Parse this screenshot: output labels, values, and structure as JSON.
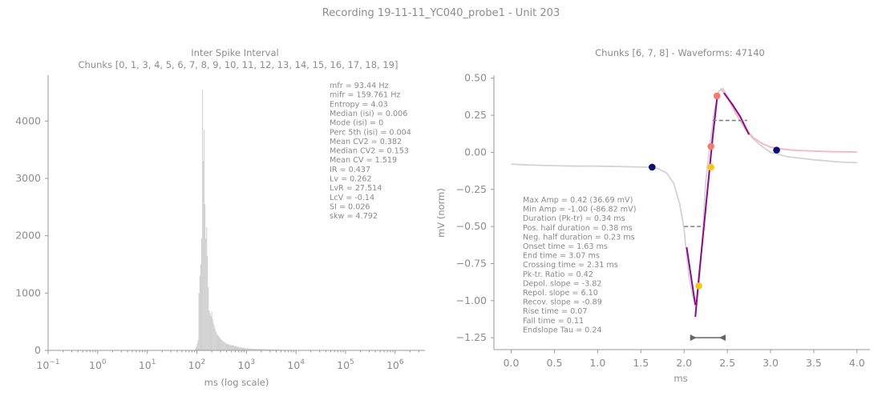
{
  "figure": {
    "title": "Recording 19-11-11_YC040_probe1 - Unit 203"
  },
  "chart_data": [
    {
      "type": "bar",
      "title": "Inter Spike Interval",
      "subtitle": "Chunks [0, 1, 3, 4, 5, 6, 7, 8, 9, 10, 11, 12, 13, 14, 15, 16, 17, 18, 19]",
      "xlabel": "ms (log scale)",
      "ylabel": "",
      "xscale": "log",
      "xlim": [
        0.1,
        4000000
      ],
      "ylim": [
        0,
        4800
      ],
      "xticks": [
        {
          "value": 0.1,
          "base": "10",
          "exp": "−1"
        },
        {
          "value": 1,
          "base": "10",
          "exp": "0"
        },
        {
          "value": 10,
          "base": "10",
          "exp": "1"
        },
        {
          "value": 100,
          "base": "10",
          "exp": "2"
        },
        {
          "value": 1000,
          "base": "10",
          "exp": "3"
        },
        {
          "value": 10000,
          "base": "10",
          "exp": "4"
        },
        {
          "value": 100000,
          "base": "10",
          "exp": "5"
        },
        {
          "value": 1000000,
          "base": "10",
          "exp": "6"
        }
      ],
      "yticks": [
        {
          "value": 0,
          "label": "0"
        },
        {
          "value": 1000,
          "label": "1000"
        },
        {
          "value": 2000,
          "label": "2000"
        },
        {
          "value": 3000,
          "label": "3000"
        },
        {
          "value": 4000,
          "label": "4000"
        }
      ],
      "bar_color": "#cfcfcf",
      "hist_x_ms": [
        85,
        90,
        95,
        100,
        104,
        108,
        113,
        118,
        123,
        128,
        133,
        138,
        143,
        149,
        155,
        161,
        167,
        174,
        181,
        188,
        196,
        204,
        212,
        220,
        229,
        238,
        248,
        258,
        268,
        279,
        290,
        302,
        314,
        326,
        339,
        352,
        366,
        381,
        396,
        412,
        428,
        445,
        463,
        481,
        500,
        560,
        630,
        700,
        800,
        900,
        1000,
        1150,
        1300,
        1500,
        1700,
        2000,
        2300,
        2600,
        3000,
        3500,
        4000,
        4600,
        5300,
        6000,
        7000,
        8000,
        9000,
        10000,
        12000,
        14000,
        16000,
        20000
      ],
      "hist_counts": [
        5,
        20,
        60,
        120,
        180,
        1000,
        1300,
        1500,
        1950,
        4550,
        3300,
        3850,
        2550,
        1950,
        2150,
        1650,
        1100,
        700,
        650,
        600,
        680,
        550,
        480,
        430,
        380,
        330,
        290,
        270,
        250,
        230,
        210,
        195,
        180,
        165,
        155,
        145,
        135,
        125,
        115,
        110,
        105,
        100,
        95,
        92,
        90,
        75,
        62,
        52,
        44,
        38,
        34,
        30,
        28,
        26,
        24,
        22,
        20,
        18,
        16,
        14,
        12,
        11,
        10,
        9,
        8,
        7,
        6,
        5,
        4,
        3,
        2,
        1
      ],
      "stats": [
        "mfr = 93.44 Hz",
        "mifr = 159.761 Hz",
        "Entropy = 4.03",
        "Median (isi) = 0.006",
        "Mode (isi) = 0",
        "Perc 5th (isi) = 0.004",
        "Mean CV2 = 0.382",
        "Median CV2 = 0.153",
        "Mean CV = 1.519",
        "IR = 0.437",
        "Lv = 0.262",
        "LvR = 27.514",
        "LcV = -0.14",
        "SI = 0.026",
        "skw = 4.792"
      ]
    },
    {
      "type": "line",
      "title": "Chunks [6, 7, 8] - Waveforms: 47140",
      "xlabel": "ms",
      "ylabel": "mV (norm)",
      "xlim": [
        -0.2,
        4.15
      ],
      "ylim": [
        -1.33,
        0.52
      ],
      "xticks": [
        {
          "value": 0.0,
          "label": "0.0"
        },
        {
          "value": 0.5,
          "label": "0.5"
        },
        {
          "value": 1.0,
          "label": "1.0"
        },
        {
          "value": 1.5,
          "label": "1.5"
        },
        {
          "value": 2.0,
          "label": "2.0"
        },
        {
          "value": 2.5,
          "label": "2.5"
        },
        {
          "value": 3.0,
          "label": "3.0"
        },
        {
          "value": 3.5,
          "label": "3.5"
        },
        {
          "value": 4.0,
          "label": "4.0"
        }
      ],
      "yticks": [
        {
          "value": 0.5,
          "label": "0.50"
        },
        {
          "value": 0.25,
          "label": "0.25"
        },
        {
          "value": 0.0,
          "label": "0.00"
        },
        {
          "value": -0.25,
          "label": "−0.25"
        },
        {
          "value": -0.5,
          "label": "−0.50"
        },
        {
          "value": -0.75,
          "label": "−0.75"
        },
        {
          "value": -1.0,
          "label": "−1.00"
        },
        {
          "value": -1.25,
          "label": "−1.25"
        }
      ],
      "series": [
        {
          "color": "#d3d3d3",
          "x": [
            0.0,
            0.2,
            0.5,
            0.8,
            1.0,
            1.2,
            1.4,
            1.6,
            1.7,
            1.8,
            1.88,
            1.95,
            2.0,
            2.03,
            2.06,
            2.1,
            2.13,
            2.17,
            2.21,
            2.25,
            2.3,
            2.35,
            2.4,
            2.45,
            2.5,
            2.6,
            2.7,
            2.8,
            2.9,
            3.0,
            3.2,
            3.5,
            3.8,
            4.0
          ],
          "y": [
            -0.08,
            -0.085,
            -0.09,
            -0.093,
            -0.093,
            -0.095,
            -0.098,
            -0.1,
            -0.11,
            -0.14,
            -0.21,
            -0.35,
            -0.52,
            -0.7,
            -0.85,
            -0.97,
            -1.02,
            -0.9,
            -0.6,
            -0.2,
            0.05,
            0.28,
            0.41,
            0.43,
            0.38,
            0.26,
            0.16,
            0.09,
            0.04,
            0.0,
            -0.03,
            -0.05,
            -0.065,
            -0.07
          ]
        },
        {
          "color": "#f4b6c2",
          "x": [
            2.42,
            2.5,
            2.6,
            2.7,
            2.8,
            2.9,
            3.0,
            3.1,
            3.25,
            3.5,
            3.75,
            4.0
          ],
          "y": [
            0.43,
            0.37,
            0.26,
            0.17,
            0.1,
            0.06,
            0.035,
            0.025,
            0.015,
            0.008,
            0.004,
            0.002
          ]
        },
        {
          "color": "#8b0a8b",
          "x": [
            2.03,
            2.13
          ],
          "y": [
            -0.64,
            -1.03
          ]
        },
        {
          "color": "#8b0a8b",
          "x": [
            2.13,
            2.17,
            2.25,
            2.33,
            2.38
          ],
          "y": [
            -1.11,
            -0.85,
            -0.38,
            0.1,
            0.36
          ]
        },
        {
          "color": "#8b0a8b",
          "x": [
            2.46,
            2.55,
            2.65,
            2.75
          ],
          "y": [
            0.4,
            0.33,
            0.24,
            0.12
          ]
        }
      ],
      "half_width_lines": [
        {
          "x1": 2.0,
          "x2": 2.23,
          "y": -0.5
        },
        {
          "x1": 2.33,
          "x2": 2.73,
          "y": 0.215
        }
      ],
      "points": [
        {
          "x": 1.63,
          "y": -0.1,
          "color": "#0b0f7a"
        },
        {
          "x": 3.07,
          "y": 0.015,
          "color": "#0b0f7a"
        },
        {
          "x": 2.31,
          "y": -0.1,
          "color": "#f5c518"
        },
        {
          "x": 2.17,
          "y": -0.9,
          "color": "#f5c518"
        },
        {
          "x": 2.31,
          "y": 0.04,
          "color": "#f47c6c"
        },
        {
          "x": 2.38,
          "y": 0.38,
          "color": "#f47c6c"
        }
      ],
      "duration_marker": {
        "x1": 2.07,
        "x2": 2.48,
        "y": -1.25,
        "color": "#666666"
      },
      "stats": [
        "Max Amp = 0.42 (36.69 mV)",
        "Min Amp = -1.00 (-86.82 mV)",
        "Duration (Pk-tr) = 0.34 ms",
        "Pos. half duration = 0.38 ms",
        "Neg. half duration = 0.23 ms",
        "Onset time = 1.63 ms",
        "End time = 3.07 ms",
        "Crossing time = 2.31 ms",
        "Pk-tr. Ratio = 0.42",
        "Depol. slope = -3.82",
        "Repol. slope = 6.10",
        "Recov. slope = -0.89",
        "Rise time = 0.07",
        "Fall time = 0.11",
        "Endslope Tau = 0.24"
      ]
    }
  ]
}
